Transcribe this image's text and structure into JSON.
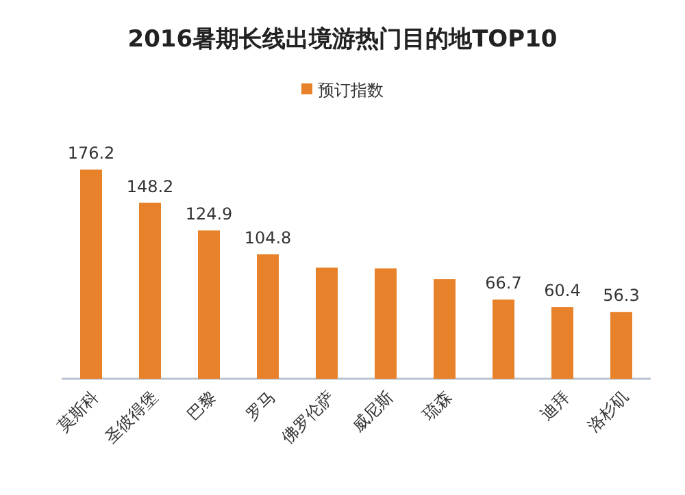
{
  "chart_data": {
    "type": "bar",
    "title": "2016暑期长线出境游热门目的地TOP10",
    "legend": "top",
    "categories": [
      "莫斯科",
      "圣彼得堡",
      "巴黎",
      "罗马",
      "佛罗伦萨",
      "威尼斯",
      "琉森",
      null,
      "迪拜",
      "洛杉矶"
    ],
    "series": [
      {
        "name": "预订指数",
        "color": "#e8822a",
        "values": [
          176.2,
          148.2,
          124.9,
          104.8,
          93.6,
          93,
          84,
          66.7,
          60.4,
          56.3
        ],
        "value_labels": [
          "176.2",
          "148.2",
          "124.9",
          "104.8",
          null,
          null,
          null,
          "66.7",
          "60.4",
          "56.3"
        ]
      }
    ]
  }
}
